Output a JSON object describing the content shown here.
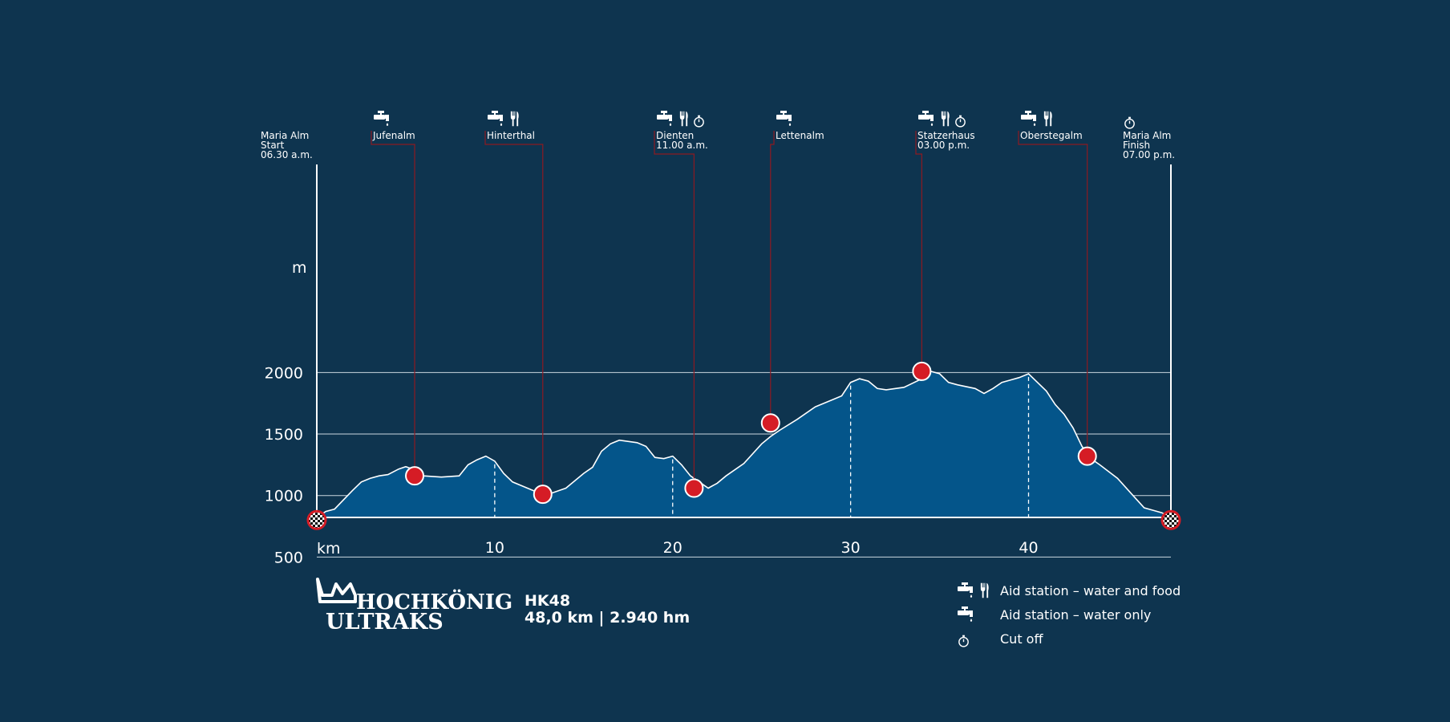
{
  "colors": {
    "background": "#0e344f",
    "area_fill": "#04558a",
    "profile_line": "#ffffff",
    "gridline": "#c9d6df",
    "leader_line": "#8c1a22",
    "marker": "#d51c25"
  },
  "chart_data": {
    "type": "area",
    "xlabel": "km",
    "ylabel": "m",
    "xlim": [
      0,
      48
    ],
    "ylim": [
      200,
      2000
    ],
    "x_ticks": [
      10,
      20,
      30,
      40
    ],
    "y_ticks": [
      500,
      1000,
      1500,
      2000
    ],
    "grid": "horizontal",
    "elevation_profile": [
      [
        0,
        820
      ],
      [
        0.5,
        870
      ],
      [
        1,
        890
      ],
      [
        2,
        1040
      ],
      [
        2.5,
        1110
      ],
      [
        3,
        1140
      ],
      [
        3.5,
        1160
      ],
      [
        4,
        1170
      ],
      [
        4.6,
        1215
      ],
      [
        5,
        1235
      ],
      [
        5.5,
        1210
      ],
      [
        6,
        1160
      ],
      [
        7,
        1150
      ],
      [
        8,
        1160
      ],
      [
        8.5,
        1250
      ],
      [
        9,
        1290
      ],
      [
        9.5,
        1320
      ],
      [
        10,
        1280
      ],
      [
        10.5,
        1180
      ],
      [
        11,
        1110
      ],
      [
        12,
        1050
      ],
      [
        12.5,
        1020
      ],
      [
        13,
        1010
      ],
      [
        14,
        1060
      ],
      [
        15,
        1180
      ],
      [
        15.5,
        1230
      ],
      [
        16,
        1360
      ],
      [
        16.5,
        1420
      ],
      [
        17,
        1450
      ],
      [
        18,
        1430
      ],
      [
        18.5,
        1400
      ],
      [
        19,
        1310
      ],
      [
        19.5,
        1300
      ],
      [
        20,
        1320
      ],
      [
        20.5,
        1250
      ],
      [
        21,
        1160
      ],
      [
        21.5,
        1110
      ],
      [
        22,
        1060
      ],
      [
        22.5,
        1100
      ],
      [
        23,
        1160
      ],
      [
        24,
        1260
      ],
      [
        25,
        1420
      ],
      [
        25.5,
        1480
      ],
      [
        26,
        1530
      ],
      [
        27,
        1620
      ],
      [
        28,
        1720
      ],
      [
        29,
        1780
      ],
      [
        29.5,
        1810
      ],
      [
        30,
        1920
      ],
      [
        30.5,
        1950
      ],
      [
        31,
        1930
      ],
      [
        31.5,
        1870
      ],
      [
        32,
        1860
      ],
      [
        33,
        1880
      ],
      [
        34,
        1950
      ],
      [
        34.5,
        2010
      ],
      [
        35,
        1990
      ],
      [
        35.5,
        1920
      ],
      [
        36,
        1900
      ],
      [
        37,
        1870
      ],
      [
        37.5,
        1830
      ],
      [
        38,
        1870
      ],
      [
        38.5,
        1920
      ],
      [
        39,
        1940
      ],
      [
        39.5,
        1960
      ],
      [
        40,
        1990
      ],
      [
        40.5,
        1920
      ],
      [
        41,
        1850
      ],
      [
        41.5,
        1740
      ],
      [
        42,
        1660
      ],
      [
        42.5,
        1550
      ],
      [
        43,
        1400
      ],
      [
        43.5,
        1300
      ],
      [
        44,
        1250
      ],
      [
        45,
        1140
      ],
      [
        46,
        980
      ],
      [
        46.5,
        900
      ],
      [
        47,
        880
      ],
      [
        47.5,
        860
      ],
      [
        48,
        820
      ]
    ],
    "cutoff_km": [
      10,
      20,
      30,
      40
    ],
    "stations": [
      {
        "name": "Maria Alm",
        "lines": [
          "Maria Alm",
          "Start",
          "06.30 a.m."
        ],
        "km": 0,
        "elev": 820,
        "icons": [
          "start-finish-flag"
        ]
      },
      {
        "name": "Jufenalm",
        "lines": [
          "Jufenalm"
        ],
        "km": 5.5,
        "elev": 1160,
        "icons": [
          "water-tap"
        ]
      },
      {
        "name": "Hinterthal",
        "lines": [
          "Hinterthal"
        ],
        "km": 12.7,
        "elev": 1010,
        "icons": [
          "water-tap",
          "food"
        ]
      },
      {
        "name": "Dienten",
        "lines": [
          "Dienten",
          "11.00 a.m."
        ],
        "km": 21.2,
        "elev": 1060,
        "icons": [
          "water-tap",
          "food",
          "cut-off-clock"
        ]
      },
      {
        "name": "Lettenalm",
        "lines": [
          "Lettenalm"
        ],
        "km": 25.5,
        "elev": 1590,
        "icons": [
          "water-tap"
        ]
      },
      {
        "name": "Statzerhaus",
        "lines": [
          "Statzerhaus",
          "03.00 p.m."
        ],
        "km": 34.0,
        "elev": 2010,
        "icons": [
          "water-tap",
          "food",
          "cut-off-clock"
        ]
      },
      {
        "name": "Oberstegalm",
        "lines": [
          "Oberstegalm"
        ],
        "km": 43.3,
        "elev": 1320,
        "icons": [
          "water-tap",
          "food"
        ]
      },
      {
        "name": "Maria Alm",
        "lines": [
          "Maria Alm",
          "Finish",
          "07.00 p.m."
        ],
        "km": 48.0,
        "elev": 820,
        "icons": [
          "cut-off-clock",
          "start-finish-flag"
        ]
      }
    ]
  },
  "race": {
    "code": "HK48",
    "stats": "48,0 km | 2.940 hm"
  },
  "logo": {
    "line1": "HOCHKÖNIG",
    "line2": "ULTRAKS"
  },
  "legend": [
    {
      "icons": [
        "water-tap",
        "food"
      ],
      "label": "Aid station – water and food"
    },
    {
      "icons": [
        "water-tap"
      ],
      "label": "Aid station – water only"
    },
    {
      "icons": [
        "cut-off-clock"
      ],
      "label": "Cut off"
    }
  ]
}
